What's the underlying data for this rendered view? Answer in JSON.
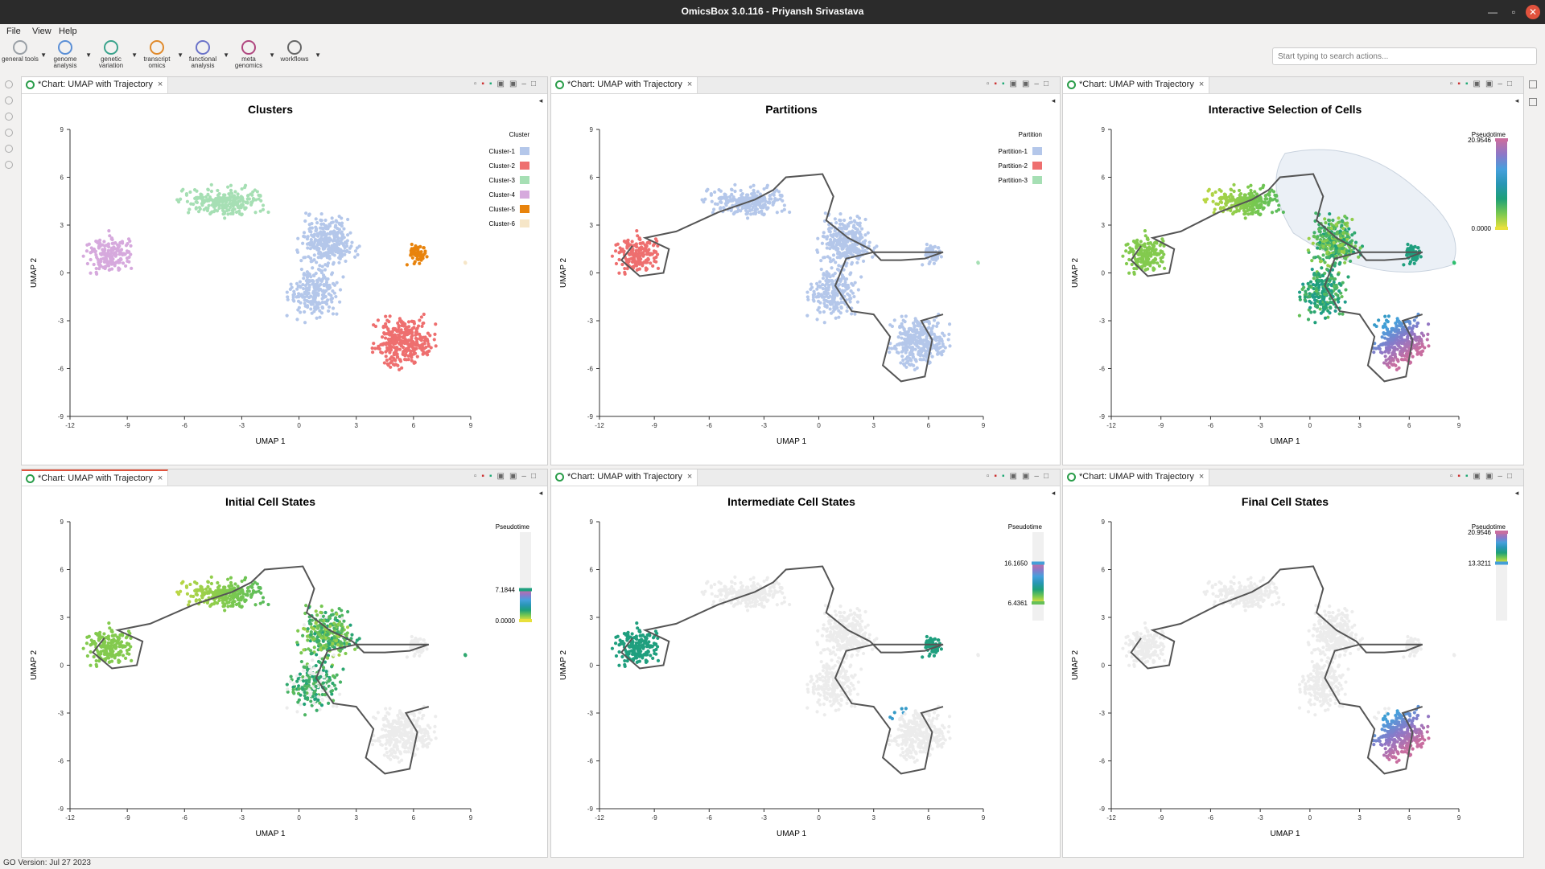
{
  "window": {
    "title": "OmicsBox 3.0.116 - Priyansh Srivastava",
    "min": "—",
    "max": "▫",
    "close": "✕"
  },
  "menu": [
    "File",
    "View",
    "Help"
  ],
  "toolbar": [
    {
      "label": "general tools",
      "color": "#9aa0a6"
    },
    {
      "label": "genome analysis",
      "color": "#5b8fd6"
    },
    {
      "label": "genetic variation",
      "color": "#3aa38c"
    },
    {
      "label": "transcript omics",
      "color": "#e08a2b"
    },
    {
      "label": "functional analysis",
      "color": "#6b73c9"
    },
    {
      "label": "meta genomics",
      "color": "#b0477f"
    },
    {
      "label": "workflows",
      "color": "#666666"
    }
  ],
  "search": {
    "placeholder": "Start typing to search actions..."
  },
  "status": {
    "text": "GO Version: Jul 27 2023"
  },
  "common": {
    "tab_label": "*Chart: UMAP with Trajectory",
    "xlabel": "UMAP 1",
    "ylabel": "UMAP 2",
    "xticks": [
      "-12",
      "-9",
      "-6",
      "-3",
      "0",
      "3",
      "6",
      "9"
    ],
    "yticks": [
      "9",
      "6",
      "3",
      "0",
      "-3",
      "-6",
      "-9"
    ],
    "xlim": [
      -12,
      9
    ],
    "ylim": [
      -9,
      9
    ]
  },
  "chart_data": [
    {
      "type": "scatter",
      "title": "Clusters",
      "legend_title": "Cluster",
      "legend": [
        {
          "name": "Cluster-1",
          "color": "#b4c7ea"
        },
        {
          "name": "Cluster-2",
          "color": "#ee6f6f"
        },
        {
          "name": "Cluster-3",
          "color": "#a6dfb4"
        },
        {
          "name": "Cluster-4",
          "color": "#d6a9dd"
        },
        {
          "name": "Cluster-5",
          "color": "#e8830c"
        },
        {
          "name": "Cluster-6",
          "color": "#f6e6c8"
        }
      ],
      "xlabel": "UMAP 1",
      "ylabel": "UMAP 2",
      "xlim": [
        -12,
        9
      ],
      "ylim": [
        -9,
        9
      ],
      "trajectory": false
    },
    {
      "type": "scatter",
      "title": "Partitions",
      "legend_title": "Partition",
      "legend": [
        {
          "name": "Partition-1",
          "color": "#b4c7ea"
        },
        {
          "name": "Partition-2",
          "color": "#ee6f6f"
        },
        {
          "name": "Partition-3",
          "color": "#a6dfb4"
        }
      ],
      "xlabel": "UMAP 1",
      "ylabel": "UMAP 2",
      "xlim": [
        -12,
        9
      ],
      "ylim": [
        -9,
        9
      ],
      "trajectory": true
    },
    {
      "type": "scatter",
      "title": "Interactive Selection of Cells",
      "legend_title": "Pseudotime",
      "range": [
        "20.9546",
        "0.0000"
      ],
      "xlabel": "UMAP 1",
      "ylabel": "UMAP 2",
      "xlim": [
        -12,
        9
      ],
      "ylim": [
        -9,
        9
      ],
      "trajectory": true
    },
    {
      "type": "scatter",
      "title": "Initial Cell States",
      "legend_title": "Pseudotime",
      "range": [
        "7.1844",
        "0.0000"
      ],
      "xlabel": "UMAP 1",
      "ylabel": "UMAP 2",
      "xlim": [
        -12,
        9
      ],
      "ylim": [
        -9,
        9
      ],
      "trajectory": true
    },
    {
      "type": "scatter",
      "title": "Intermediate Cell States",
      "legend_title": "Pseudotime",
      "range": [
        "16.1650",
        "6.4361"
      ],
      "xlabel": "UMAP 1",
      "ylabel": "UMAP 2",
      "xlim": [
        -12,
        9
      ],
      "ylim": [
        -9,
        9
      ],
      "trajectory": true
    },
    {
      "type": "scatter",
      "title": "Final Cell States",
      "legend_title": "Pseudotime",
      "range": [
        "20.9546",
        "13.3211"
      ],
      "xlabel": "UMAP 1",
      "ylabel": "UMAP 2",
      "xlim": [
        -12,
        9
      ],
      "ylim": [
        -9,
        9
      ],
      "trajectory": true
    }
  ]
}
